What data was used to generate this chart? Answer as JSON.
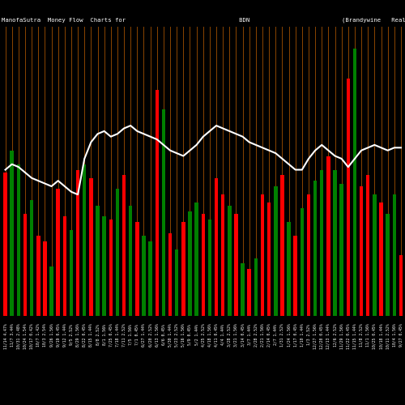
{
  "title": "ManofaSutra  Money Flow  Charts for                                BDN                          (Brandywine   Realty Trust) Mo",
  "bg_color": "#000000",
  "bar_colors": [
    "red",
    "green",
    "green",
    "red",
    "green",
    "red",
    "red",
    "green",
    "red",
    "red",
    "green",
    "red",
    "green",
    "red",
    "green",
    "green",
    "red",
    "green",
    "red",
    "green",
    "red",
    "green",
    "green",
    "red",
    "green",
    "red",
    "green",
    "red",
    "green",
    "green",
    "red",
    "green",
    "red",
    "red",
    "green",
    "red",
    "green",
    "red",
    "green",
    "red",
    "red",
    "green",
    "red",
    "green",
    "red",
    "green",
    "red",
    "green",
    "green",
    "red",
    "green",
    "green",
    "red",
    "green",
    "red",
    "red",
    "green",
    "red",
    "green",
    "green",
    "red"
  ],
  "bar_heights": [
    0.52,
    0.6,
    0.55,
    0.37,
    0.42,
    0.29,
    0.27,
    0.18,
    0.46,
    0.36,
    0.31,
    0.53,
    0.55,
    0.5,
    0.4,
    0.36,
    0.35,
    0.46,
    0.51,
    0.4,
    0.34,
    0.29,
    0.27,
    0.82,
    0.75,
    0.3,
    0.24,
    0.34,
    0.38,
    0.41,
    0.37,
    0.35,
    0.5,
    0.44,
    0.4,
    0.37,
    0.19,
    0.17,
    0.21,
    0.44,
    0.41,
    0.47,
    0.51,
    0.34,
    0.29,
    0.39,
    0.44,
    0.49,
    0.53,
    0.58,
    0.53,
    0.48,
    0.86,
    0.97,
    0.47,
    0.51,
    0.44,
    0.41,
    0.37,
    0.44,
    0.22
  ],
  "line_values": [
    0.53,
    0.55,
    0.54,
    0.52,
    0.5,
    0.49,
    0.48,
    0.47,
    0.49,
    0.47,
    0.45,
    0.44,
    0.57,
    0.63,
    0.66,
    0.67,
    0.65,
    0.66,
    0.68,
    0.69,
    0.67,
    0.66,
    0.65,
    0.64,
    0.62,
    0.6,
    0.59,
    0.58,
    0.6,
    0.62,
    0.65,
    0.67,
    0.69,
    0.68,
    0.67,
    0.66,
    0.65,
    0.63,
    0.62,
    0.61,
    0.6,
    0.59,
    0.57,
    0.55,
    0.53,
    0.53,
    0.57,
    0.6,
    0.62,
    0.6,
    0.58,
    0.57,
    0.54,
    0.57,
    0.6,
    0.61,
    0.62,
    0.61,
    0.6,
    0.61,
    0.61
  ],
  "grid_color": "#8B4500",
  "line_color": "#ffffff",
  "tick_color": "#ffffff",
  "title_color": "#ffffff",
  "bar_width": 0.55,
  "ylim": [
    0,
    1.05
  ],
  "n_bars": 61,
  "tick_labels": [
    "11/14 4.47%",
    "11/7 3.44%",
    "10/31 2.48%",
    "10/24 1.54%",
    "10/17 0.42%",
    "10/7 1.42%",
    "10/3 2.54%",
    "9/26 1.56%",
    "9/19 0.45%",
    "9/12 1.44%",
    "9/5 2.52%",
    "8/29 1.56%",
    "8/22 0.45%",
    "8/15 1.44%",
    "8/8 2.52%",
    "8/1 1.56%",
    "7/25 0.45%",
    "7/18 1.44%",
    "7/11 2.52%",
    "7/5 1.56%",
    "7/1 0.45%",
    "6/27 1.44%",
    "6/20 2.52%",
    "6/13 1.56%",
    "6/6 0.45%",
    "5/30 1.44%",
    "5/23 2.52%",
    "5/16 1.56%",
    "5/9 0.45%",
    "5/2 1.44%",
    "4/25 2.52%",
    "4/18 1.56%",
    "4/11 0.45%",
    "4/4 1.44%",
    "3/28 2.52%",
    "3/21 1.56%",
    "3/14 0.45%",
    "3/7 1.44%",
    "2/28 2.52%",
    "2/21 1.56%",
    "2/14 0.45%",
    "2/7 1.44%",
    "1/31 2.52%",
    "1/24 1.56%",
    "1/17 0.45%",
    "1/10 1.44%",
    "1/3 2.52%",
    "12/27 1.56%",
    "12/20 0.45%",
    "12/13 1.44%",
    "12/6 2.52%",
    "11/29 1.56%",
    "11/22 0.45%",
    "11/15 1.44%",
    "11/8 2.52%",
    "11/1 1.56%",
    "10/25 0.45%",
    "10/18 1.44%",
    "10/11 2.52%",
    "10/4 1.56%",
    "9/27 0.45%"
  ]
}
